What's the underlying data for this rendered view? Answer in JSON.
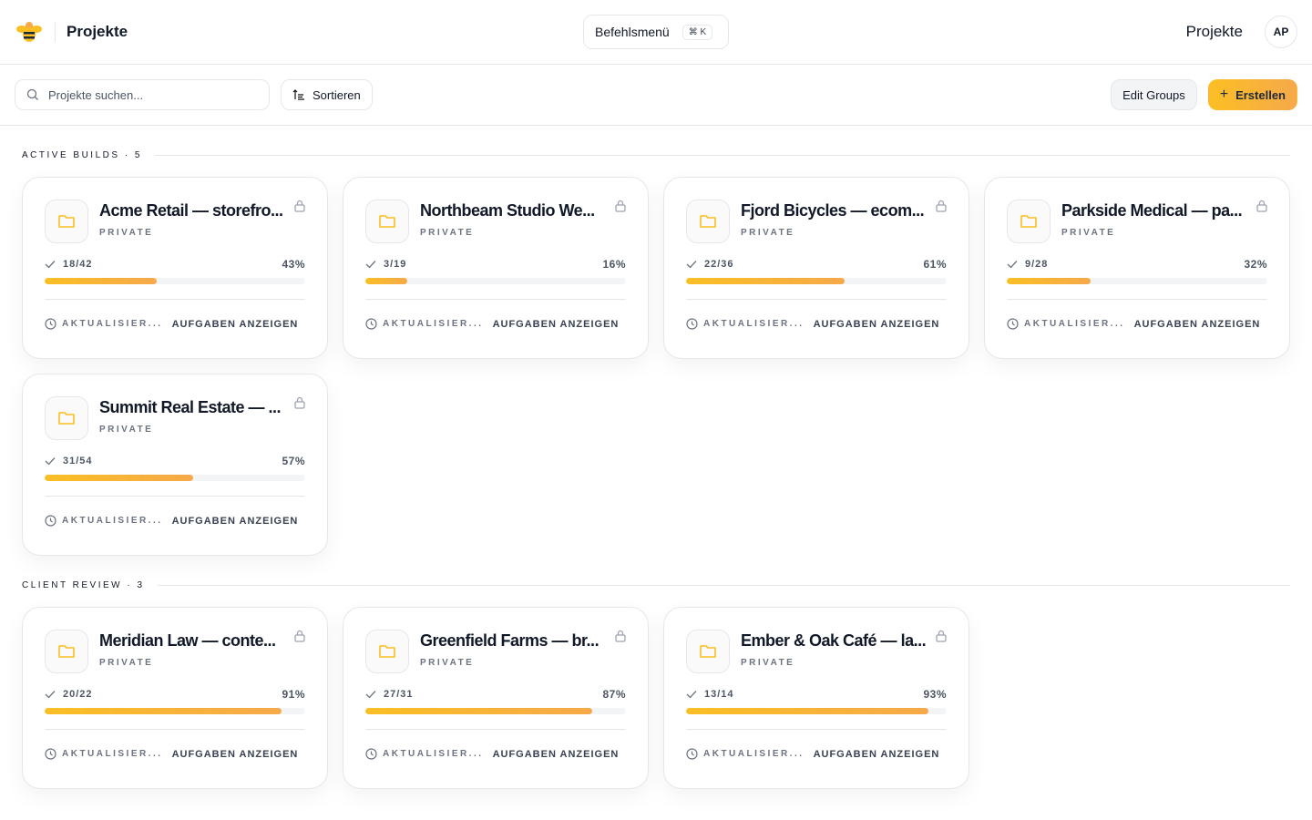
{
  "header": {
    "title": "Projekte",
    "command_menu": "Befehlsmenü",
    "shortcut": "⌘ K",
    "nav_link": "Projekte",
    "avatar": "AP"
  },
  "toolbar": {
    "search_placeholder": "Projekte suchen...",
    "sort_label": "Sortieren",
    "edit_groups_label": "Edit Groups",
    "create_label": "Erstellen"
  },
  "colors": {
    "accent": "#fbbf24",
    "accent_end": "#f6a94a"
  },
  "sections": [
    {
      "label": "ACTIVE BUILDS · 5",
      "projects": [
        {
          "title": "Acme Retail — storefro...",
          "visibility": "PRIVATE",
          "tasks": "18/42",
          "percent": 43,
          "percent_label": "43%",
          "updated": "AKTUALISIER...",
          "action": "AUFGABEN ANZEIGEN"
        },
        {
          "title": "Northbeam Studio We...",
          "visibility": "PRIVATE",
          "tasks": "3/19",
          "percent": 16,
          "percent_label": "16%",
          "updated": "AKTUALISIER...",
          "action": "AUFGABEN ANZEIGEN"
        },
        {
          "title": "Fjord Bicycles — ecom...",
          "visibility": "PRIVATE",
          "tasks": "22/36",
          "percent": 61,
          "percent_label": "61%",
          "updated": "AKTUALISIER...",
          "action": "AUFGABEN ANZEIGEN"
        },
        {
          "title": "Parkside Medical — pa...",
          "visibility": "PRIVATE",
          "tasks": "9/28",
          "percent": 32,
          "percent_label": "32%",
          "updated": "AKTUALISIER...",
          "action": "AUFGABEN ANZEIGEN"
        },
        {
          "title": "Summit Real Estate — ...",
          "visibility": "PRIVATE",
          "tasks": "31/54",
          "percent": 57,
          "percent_label": "57%",
          "updated": "AKTUALISIER...",
          "action": "AUFGABEN ANZEIGEN"
        }
      ]
    },
    {
      "label": "CLIENT REVIEW · 3",
      "projects": [
        {
          "title": "Meridian Law — conte...",
          "visibility": "PRIVATE",
          "tasks": "20/22",
          "percent": 91,
          "percent_label": "91%",
          "updated": "AKTUALISIER...",
          "action": "AUFGABEN ANZEIGEN"
        },
        {
          "title": "Greenfield Farms — br...",
          "visibility": "PRIVATE",
          "tasks": "27/31",
          "percent": 87,
          "percent_label": "87%",
          "updated": "AKTUALISIER...",
          "action": "AUFGABEN ANZEIGEN"
        },
        {
          "title": "Ember & Oak Café — la...",
          "visibility": "PRIVATE",
          "tasks": "13/14",
          "percent": 93,
          "percent_label": "93%",
          "updated": "AKTUALISIER...",
          "action": "AUFGABEN ANZEIGEN"
        }
      ]
    }
  ]
}
